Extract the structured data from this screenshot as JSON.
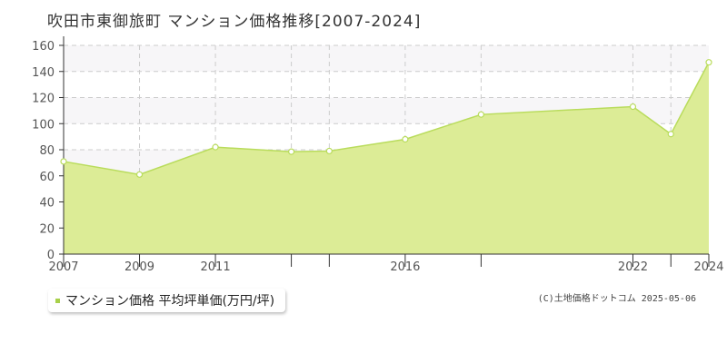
{
  "chart_data": {
    "type": "area",
    "title": "吹田市東御旅町 マンション価格推移[2007-2024]",
    "x": [
      2007,
      2009,
      2011,
      2013,
      2014,
      2016,
      2018,
      2022,
      2023,
      2024
    ],
    "x_tick_labels": [
      "2007",
      "2009",
      "2011",
      "2016",
      "2022",
      "2024"
    ],
    "y_tick_labels": [
      "0",
      "20",
      "40",
      "60",
      "80",
      "100",
      "120",
      "140",
      "160"
    ],
    "ylim": [
      0,
      160
    ],
    "series": [
      {
        "name": "マンション価格 平均坪単価(万円/坪)",
        "values": [
          71,
          61,
          82,
          78.5,
          79,
          88,
          107,
          113,
          92,
          147
        ]
      }
    ],
    "grid": true,
    "legend_position": "bottom-left",
    "colors": {
      "fill": "#dcec96",
      "line": "#b9dc5c",
      "marker_fill": "#ffffff",
      "band": "#f7f6f8",
      "grid": "#cccccc",
      "legend_swatch": "#a8d04a"
    }
  },
  "legend_label": "マンション価格 平均坪単価(万円/坪)",
  "credit": "(C)土地価格ドットコム 2025-05-06"
}
